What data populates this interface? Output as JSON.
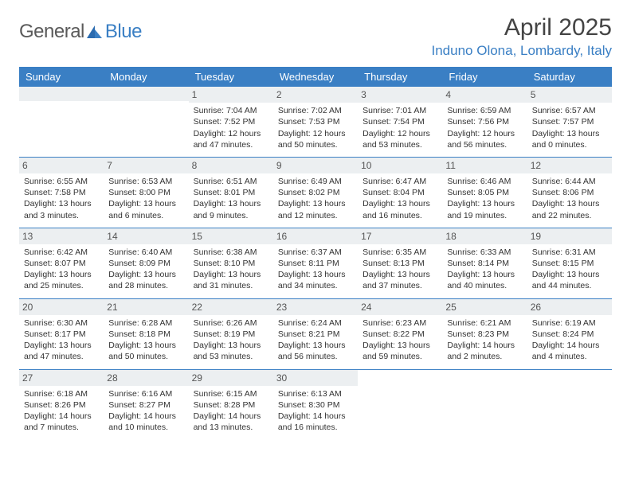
{
  "logo": {
    "text1": "General",
    "text2": "Blue"
  },
  "title": "April 2025",
  "location": "Induno Olona, Lombardy, Italy",
  "colors": {
    "accent": "#3a7fc4",
    "dayRowBg": "#eceff1",
    "text": "#333333",
    "bg": "#ffffff"
  },
  "dayHeaders": [
    "Sunday",
    "Monday",
    "Tuesday",
    "Wednesday",
    "Thursday",
    "Friday",
    "Saturday"
  ],
  "weeks": [
    [
      null,
      null,
      {
        "n": "1",
        "sr": "Sunrise: 7:04 AM",
        "ss": "Sunset: 7:52 PM",
        "dl": "Daylight: 12 hours and 47 minutes."
      },
      {
        "n": "2",
        "sr": "Sunrise: 7:02 AM",
        "ss": "Sunset: 7:53 PM",
        "dl": "Daylight: 12 hours and 50 minutes."
      },
      {
        "n": "3",
        "sr": "Sunrise: 7:01 AM",
        "ss": "Sunset: 7:54 PM",
        "dl": "Daylight: 12 hours and 53 minutes."
      },
      {
        "n": "4",
        "sr": "Sunrise: 6:59 AM",
        "ss": "Sunset: 7:56 PM",
        "dl": "Daylight: 12 hours and 56 minutes."
      },
      {
        "n": "5",
        "sr": "Sunrise: 6:57 AM",
        "ss": "Sunset: 7:57 PM",
        "dl": "Daylight: 13 hours and 0 minutes."
      }
    ],
    [
      {
        "n": "6",
        "sr": "Sunrise: 6:55 AM",
        "ss": "Sunset: 7:58 PM",
        "dl": "Daylight: 13 hours and 3 minutes."
      },
      {
        "n": "7",
        "sr": "Sunrise: 6:53 AM",
        "ss": "Sunset: 8:00 PM",
        "dl": "Daylight: 13 hours and 6 minutes."
      },
      {
        "n": "8",
        "sr": "Sunrise: 6:51 AM",
        "ss": "Sunset: 8:01 PM",
        "dl": "Daylight: 13 hours and 9 minutes."
      },
      {
        "n": "9",
        "sr": "Sunrise: 6:49 AM",
        "ss": "Sunset: 8:02 PM",
        "dl": "Daylight: 13 hours and 12 minutes."
      },
      {
        "n": "10",
        "sr": "Sunrise: 6:47 AM",
        "ss": "Sunset: 8:04 PM",
        "dl": "Daylight: 13 hours and 16 minutes."
      },
      {
        "n": "11",
        "sr": "Sunrise: 6:46 AM",
        "ss": "Sunset: 8:05 PM",
        "dl": "Daylight: 13 hours and 19 minutes."
      },
      {
        "n": "12",
        "sr": "Sunrise: 6:44 AM",
        "ss": "Sunset: 8:06 PM",
        "dl": "Daylight: 13 hours and 22 minutes."
      }
    ],
    [
      {
        "n": "13",
        "sr": "Sunrise: 6:42 AM",
        "ss": "Sunset: 8:07 PM",
        "dl": "Daylight: 13 hours and 25 minutes."
      },
      {
        "n": "14",
        "sr": "Sunrise: 6:40 AM",
        "ss": "Sunset: 8:09 PM",
        "dl": "Daylight: 13 hours and 28 minutes."
      },
      {
        "n": "15",
        "sr": "Sunrise: 6:38 AM",
        "ss": "Sunset: 8:10 PM",
        "dl": "Daylight: 13 hours and 31 minutes."
      },
      {
        "n": "16",
        "sr": "Sunrise: 6:37 AM",
        "ss": "Sunset: 8:11 PM",
        "dl": "Daylight: 13 hours and 34 minutes."
      },
      {
        "n": "17",
        "sr": "Sunrise: 6:35 AM",
        "ss": "Sunset: 8:13 PM",
        "dl": "Daylight: 13 hours and 37 minutes."
      },
      {
        "n": "18",
        "sr": "Sunrise: 6:33 AM",
        "ss": "Sunset: 8:14 PM",
        "dl": "Daylight: 13 hours and 40 minutes."
      },
      {
        "n": "19",
        "sr": "Sunrise: 6:31 AM",
        "ss": "Sunset: 8:15 PM",
        "dl": "Daylight: 13 hours and 44 minutes."
      }
    ],
    [
      {
        "n": "20",
        "sr": "Sunrise: 6:30 AM",
        "ss": "Sunset: 8:17 PM",
        "dl": "Daylight: 13 hours and 47 minutes."
      },
      {
        "n": "21",
        "sr": "Sunrise: 6:28 AM",
        "ss": "Sunset: 8:18 PM",
        "dl": "Daylight: 13 hours and 50 minutes."
      },
      {
        "n": "22",
        "sr": "Sunrise: 6:26 AM",
        "ss": "Sunset: 8:19 PM",
        "dl": "Daylight: 13 hours and 53 minutes."
      },
      {
        "n": "23",
        "sr": "Sunrise: 6:24 AM",
        "ss": "Sunset: 8:21 PM",
        "dl": "Daylight: 13 hours and 56 minutes."
      },
      {
        "n": "24",
        "sr": "Sunrise: 6:23 AM",
        "ss": "Sunset: 8:22 PM",
        "dl": "Daylight: 13 hours and 59 minutes."
      },
      {
        "n": "25",
        "sr": "Sunrise: 6:21 AM",
        "ss": "Sunset: 8:23 PM",
        "dl": "Daylight: 14 hours and 2 minutes."
      },
      {
        "n": "26",
        "sr": "Sunrise: 6:19 AM",
        "ss": "Sunset: 8:24 PM",
        "dl": "Daylight: 14 hours and 4 minutes."
      }
    ],
    [
      {
        "n": "27",
        "sr": "Sunrise: 6:18 AM",
        "ss": "Sunset: 8:26 PM",
        "dl": "Daylight: 14 hours and 7 minutes."
      },
      {
        "n": "28",
        "sr": "Sunrise: 6:16 AM",
        "ss": "Sunset: 8:27 PM",
        "dl": "Daylight: 14 hours and 10 minutes."
      },
      {
        "n": "29",
        "sr": "Sunrise: 6:15 AM",
        "ss": "Sunset: 8:28 PM",
        "dl": "Daylight: 14 hours and 13 minutes."
      },
      {
        "n": "30",
        "sr": "Sunrise: 6:13 AM",
        "ss": "Sunset: 8:30 PM",
        "dl": "Daylight: 14 hours and 16 minutes."
      },
      null,
      null,
      null
    ]
  ]
}
